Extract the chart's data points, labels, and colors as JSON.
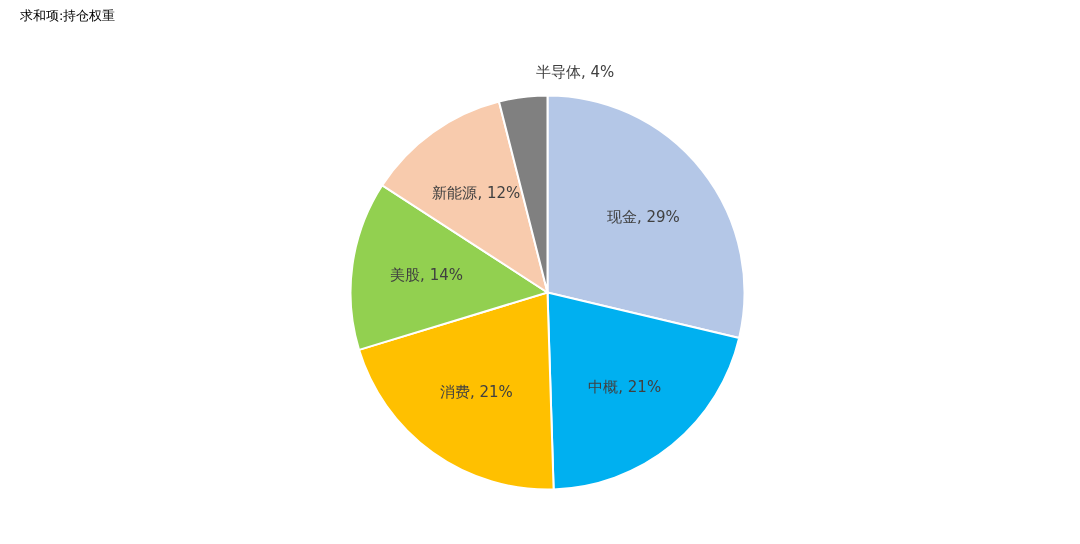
{
  "chart_data": {
    "type": "pie",
    "title": "求和项:持仓权重",
    "categories": [
      "现金",
      "中概",
      "消费",
      "美股",
      "新能源",
      "半导体"
    ],
    "values": [
      29,
      21,
      21,
      14,
      12,
      4
    ],
    "colors": [
      "#b4c7e7",
      "#00b0f0",
      "#ffc000",
      "#92d050",
      "#f8cbad",
      "#808080"
    ],
    "value_labels": [
      "29%",
      "21%",
      "21%",
      "14%",
      "12%",
      "4%"
    ],
    "legend": false
  }
}
